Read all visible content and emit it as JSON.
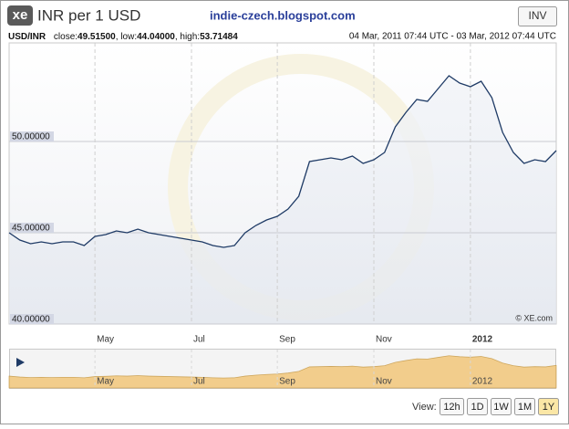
{
  "widget": {
    "logo": "xe",
    "title": "INR per 1 USD",
    "site": "indie-czech.blogspot.com",
    "button": "INV"
  },
  "stats": {
    "pair": "USD/INR",
    "close_label": "close:",
    "close": "49.51500",
    "low_label": "low:",
    "low": "44.04000",
    "high_label": "high:",
    "high": "53.71484",
    "range": "04 Mar, 2011 07:44 UTC - 03 Mar, 2012 07:44 UTC"
  },
  "chart_data": {
    "type": "line",
    "color": "#1f3b66",
    "navigator_color": "#f2c77a",
    "grid": true,
    "copyright": "© XE.com",
    "categories": [
      null,
      null,
      null,
      null,
      null,
      null,
      null,
      null,
      "May",
      null,
      null,
      null,
      null,
      null,
      null,
      null,
      null,
      "Jul",
      null,
      null,
      null,
      null,
      null,
      null,
      null,
      "Sep",
      null,
      null,
      null,
      null,
      null,
      null,
      null,
      null,
      "Nov",
      null,
      null,
      null,
      null,
      null,
      null,
      null,
      null,
      "2012",
      null,
      null,
      null,
      null,
      null,
      null,
      null,
      null
    ],
    "values": [
      45.0,
      44.6,
      44.4,
      44.5,
      44.4,
      44.5,
      44.5,
      44.3,
      44.8,
      44.9,
      45.1,
      45.0,
      45.2,
      45.0,
      44.9,
      44.8,
      44.7,
      44.6,
      44.5,
      44.3,
      44.2,
      44.3,
      45.0,
      45.4,
      45.7,
      45.9,
      46.3,
      47.0,
      48.9,
      49.0,
      49.1,
      49.0,
      49.2,
      48.8,
      49.0,
      49.4,
      50.8,
      51.6,
      52.3,
      52.2,
      52.9,
      53.6,
      53.2,
      53.0,
      53.3,
      52.4,
      50.5,
      49.4,
      48.8,
      49.0,
      48.9,
      49.5
    ],
    "ylim": [
      40,
      55.4
    ],
    "yticks": [
      {
        "value": 40,
        "label": "40.00000"
      },
      {
        "value": 45,
        "label": "45.00000"
      },
      {
        "value": 50,
        "label": "50.00000"
      }
    ]
  },
  "view": {
    "label": "View:",
    "buttons": [
      "12h",
      "1D",
      "1W",
      "1M",
      "1Y"
    ],
    "selected": "1Y"
  }
}
